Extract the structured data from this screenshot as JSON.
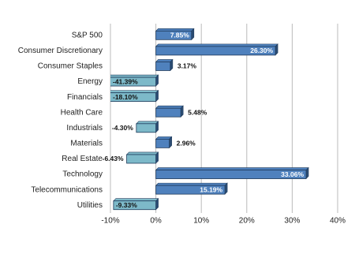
{
  "chart_data": {
    "type": "hbar",
    "categories": [
      "S&P 500",
      "Consumer Discretionary",
      "Consumer Staples",
      "Energy",
      "Financials",
      "Health Care",
      "Industrials",
      "Materials",
      "Real Estate",
      "Technology",
      "Telecommunications",
      "Utilities"
    ],
    "values": [
      7.85,
      26.3,
      3.17,
      -41.39,
      -18.1,
      5.48,
      -4.3,
      2.96,
      -6.43,
      33.06,
      15.19,
      -9.33
    ],
    "value_labels": [
      "7.85%",
      "26.30%",
      "3.17%",
      "-41.39%",
      "-18.10%",
      "5.48%",
      "-4.30%",
      "2.96%",
      "-6.43%",
      "33.06%",
      "15.19%",
      "-9.33%"
    ],
    "color": "#4f81bd",
    "negative_color": "#7db9c9",
    "xlim": [
      -10,
      40
    ],
    "xticks": [
      {
        "value": -10,
        "label": "-10%"
      },
      {
        "value": 0,
        "label": "0%"
      },
      {
        "value": 10,
        "label": "10%"
      },
      {
        "value": 20,
        "label": "20%"
      },
      {
        "value": 30,
        "label": "30%"
      },
      {
        "value": 40,
        "label": "40%"
      }
    ],
    "grid": true
  }
}
